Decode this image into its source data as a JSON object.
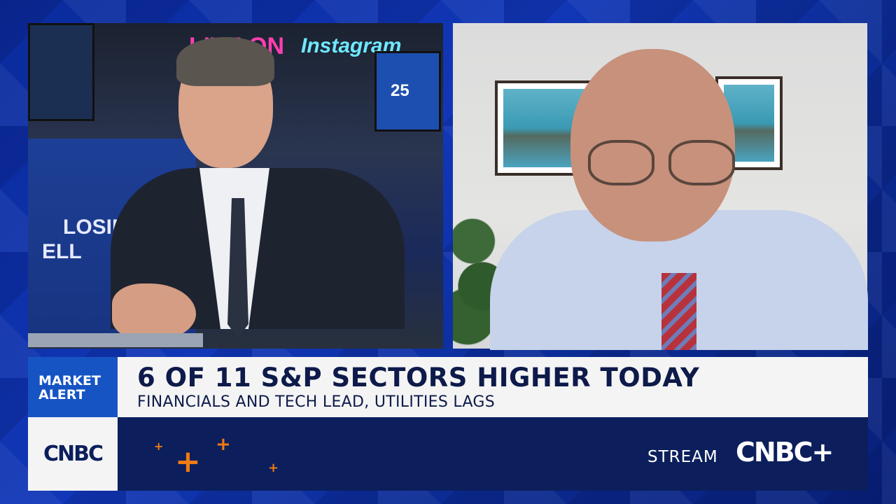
{
  "background_set_text": {
    "live_on": "LIVE ON",
    "instagram": "Instagram",
    "closing": "LOSING",
    "bell": "ELL",
    "screen_number": "25"
  },
  "lower_third": {
    "tag_line1": "MARKET",
    "tag_line2": "ALERT",
    "headline": "6 OF 11 S&P SECTORS HIGHER TODAY",
    "subheadline": "FINANCIALS AND TECH LEAD, UTILITIES LAGS"
  },
  "branding": {
    "network_logo": "CNBC",
    "stream_label": "STREAM",
    "stream_logo": "CNBC+"
  },
  "colors": {
    "alert_blue": "#1654c4",
    "navy": "#0c1f5c",
    "accent_orange": "#f07a14",
    "headline_text": "#0d1a4a"
  }
}
